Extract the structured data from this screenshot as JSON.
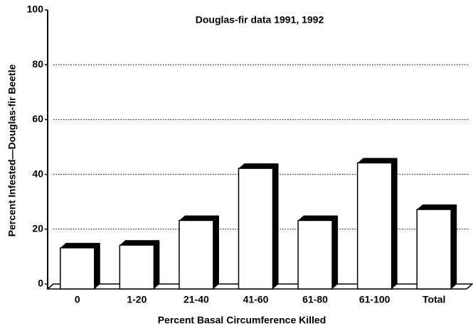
{
  "chart_data": {
    "type": "bar3d",
    "title": "Douglas-fir data 1991, 1992",
    "x_label": "Percent Basal Circumference Killed",
    "y_label": "Percent Infested—Douglas-fir Beetle",
    "categories": [
      "0",
      "1-20",
      "21-40",
      "41-60",
      "61-80",
      "61-100",
      "Total"
    ],
    "values": [
      15,
      16,
      25,
      44,
      25,
      46,
      29
    ],
    "color": "#ffffff",
    "ylim": [
      0,
      100
    ],
    "yticks": [
      0,
      20,
      40,
      60,
      80,
      100
    ],
    "grid": true
  }
}
